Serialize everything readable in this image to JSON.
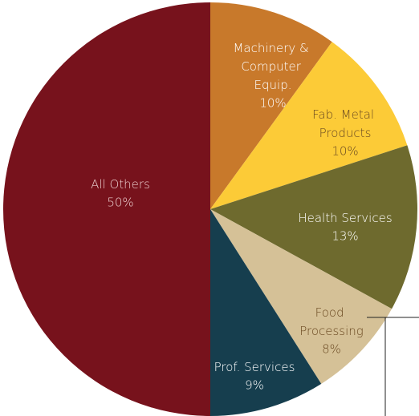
{
  "chart_data": {
    "type": "pie",
    "categories": [
      "Machinery & Computer Equip.",
      "Fab. Metal Products",
      "Health Services",
      "Food Processing",
      "Prof. Services",
      "All Others"
    ],
    "values": [
      10,
      10,
      13,
      8,
      9,
      50
    ],
    "value_labels": [
      "10%",
      "10%",
      "13%",
      "8%",
      "9%",
      "50%"
    ],
    "colors": [
      "#c8792b",
      "#fccb37",
      "#6e6a2e",
      "#d5c197",
      "#163e4e",
      "#77121c"
    ]
  }
}
